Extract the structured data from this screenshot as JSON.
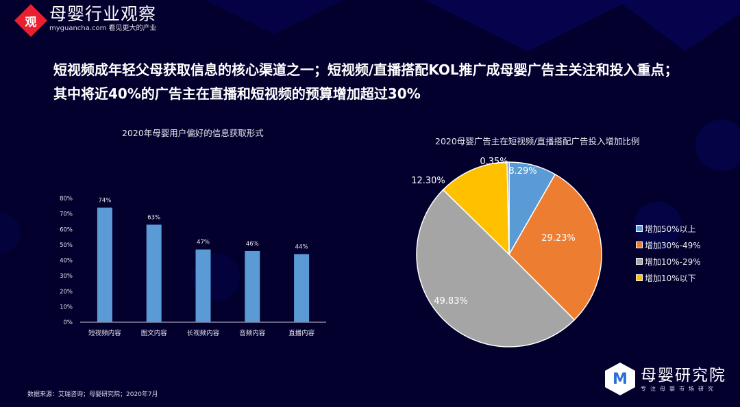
{
  "header": {
    "logo_mark": "观",
    "brand_cn": "母婴行业观察",
    "brand_en": "myguancha.com 看见更大的产业"
  },
  "headline": {
    "line1": "短视频成年轻父母获取信息的核心渠道之一；短视频/直播搭配KOL推广成母婴广告主关注和投入重点；",
    "line2": "其中将近40%的广告主在直播和短视频的预算增加超过30%"
  },
  "chart_data": [
    {
      "type": "bar",
      "title": "2020年母婴用户偏好的信息获取形式",
      "categories": [
        "短视频内容",
        "图文内容",
        "长视频内容",
        "音频内容",
        "直播内容"
      ],
      "values": [
        74,
        63,
        47,
        46,
        44
      ],
      "value_labels": [
        "74%",
        "63%",
        "47%",
        "46%",
        "44%"
      ],
      "yticks": [
        "0%",
        "10%",
        "20%",
        "30%",
        "40%",
        "50%",
        "60%",
        "70%",
        "80%"
      ],
      "ylim": [
        0,
        80
      ],
      "xlabel": "",
      "ylabel": "",
      "grid": false,
      "bar_color": "#5b9bd5"
    },
    {
      "type": "pie",
      "title": "2020母婴广告主在短视频/直播搭配广告投入增加比例",
      "labels": [
        "增加50%以上",
        "增加30%-49%",
        "增加10%-29%",
        "增加10%以下",
        ""
      ],
      "values": [
        8.29,
        29.23,
        49.83,
        12.3,
        0.35
      ],
      "value_labels": [
        "8.29%",
        "29.23%",
        "49.83%",
        "12.30%",
        "0.35%"
      ],
      "colors": [
        "#5b9bd5",
        "#ed7d31",
        "#a5a5a5",
        "#ffc000",
        "#4472c4"
      ],
      "legend_position": "right"
    }
  ],
  "legend": {
    "items": [
      {
        "label": "增加50%以上",
        "color": "#5b9bd5"
      },
      {
        "label": "增加30%-49%",
        "color": "#ed7d31"
      },
      {
        "label": "增加10%-29%",
        "color": "#a5a5a5"
      },
      {
        "label": "增加10%以下",
        "color": "#ffc000"
      }
    ]
  },
  "source": "数据来源：艾瑞咨询；母婴研究院；2020年7月",
  "footer": {
    "logo_mark": "M",
    "brand_cn": "母婴研究院",
    "tagline": "专注母婴市场研究"
  }
}
